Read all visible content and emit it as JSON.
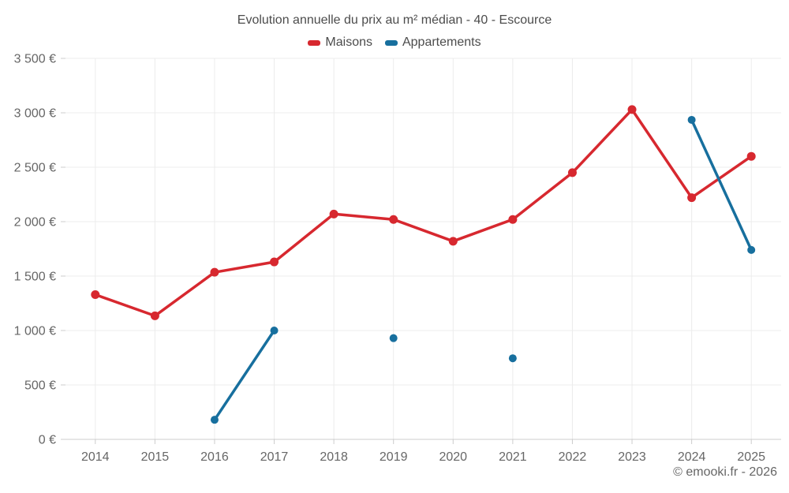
{
  "copyright": "© emooki.fr - 2026",
  "colors": {
    "background": "#ffffff",
    "grid": "#ececec",
    "axis": "#cccccc",
    "axis_text": "#666666",
    "title_text": "#4c4c4c",
    "maisons_red": "#d7282f",
    "appartements_blue": "#176f9e"
  },
  "chart_data": {
    "type": "line",
    "title": "Evolution annuelle du prix au m² médian - 40 - Escource",
    "categories": [
      "2014",
      "2015",
      "2016",
      "2017",
      "2018",
      "2019",
      "2020",
      "2021",
      "2022",
      "2023",
      "2024",
      "2025"
    ],
    "series": [
      {
        "name": "Maisons",
        "color": "#d7282f",
        "values": [
          1330,
          1135,
          1535,
          1630,
          2070,
          2020,
          1820,
          2020,
          2450,
          3030,
          2220,
          2600
        ]
      },
      {
        "name": "Appartements",
        "color": "#176f9e",
        "values": [
          null,
          null,
          180,
          1000,
          null,
          930,
          null,
          745,
          null,
          null,
          2935,
          1740
        ]
      }
    ],
    "xlabel": "",
    "ylabel": "",
    "ylim": [
      0,
      3500
    ],
    "ytick_step": 500,
    "ytick_labels": [
      "0 €",
      "500 €",
      "1 000 €",
      "1 500 €",
      "2 000 €",
      "2 500 €",
      "3 000 €",
      "3 500 €"
    ],
    "yunit": "€",
    "grid": true,
    "legend_position": "top",
    "marker": "circle",
    "line_gaps_not_connected": true
  }
}
